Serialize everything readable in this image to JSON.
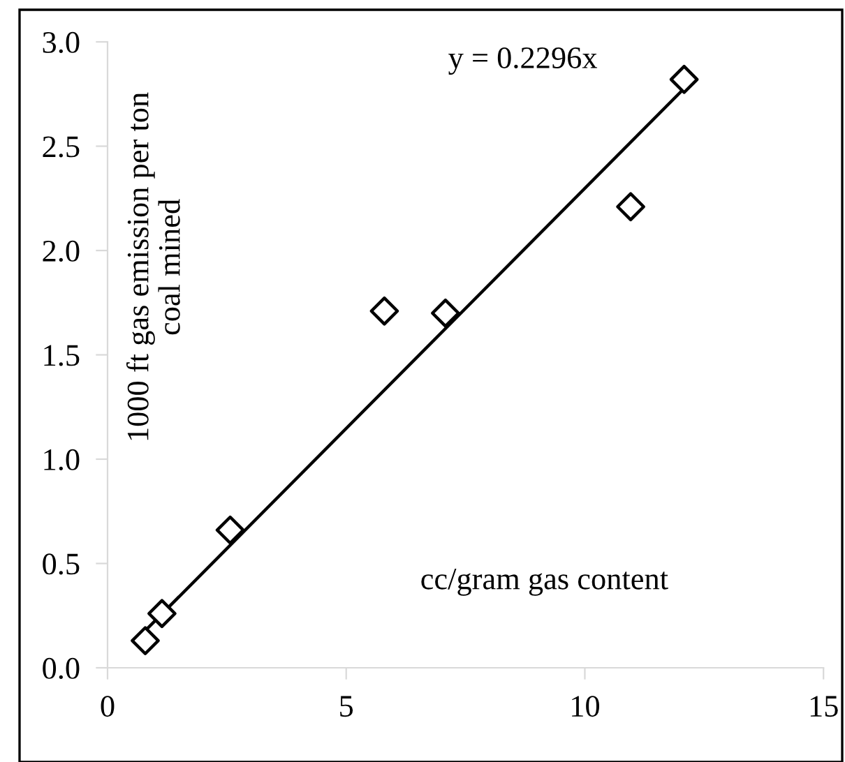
{
  "chart_data": {
    "type": "scatter",
    "xlabel": "cc/gram gas content",
    "ylabel": "1000 ft gas emission per ton\ncoal mined",
    "annotations": [
      "y = 0.2296x"
    ],
    "series": [
      {
        "color": "#000000",
        "marker": "diamond",
        "x": [
          0.79,
          1.14,
          2.57,
          5.8,
          7.08,
          10.96,
          12.08
        ],
        "values": [
          0.13,
          0.26,
          0.66,
          1.71,
          1.7,
          2.21,
          2.82
        ]
      },
      {
        "type": "line",
        "color": "#000000",
        "marker": "none",
        "line_style": "solid",
        "x": [
          0.8,
          12.05
        ],
        "values": [
          0.18,
          2.77
        ]
      }
    ],
    "xlim": [
      0,
      15
    ],
    "xticks": [
      0,
      5,
      10,
      15
    ],
    "ylim": [
      0,
      3
    ],
    "yticks": [
      {
        "value": 0,
        "label": "0.0"
      },
      {
        "value": 0.5,
        "label": "0.5"
      },
      {
        "value": 1,
        "label": "1.0"
      },
      {
        "value": 1.5,
        "label": "1.5"
      },
      {
        "value": 2,
        "label": "2.0"
      },
      {
        "value": 2.5,
        "label": "2.5"
      },
      {
        "value": 3,
        "label": "3.0"
      }
    ],
    "grid": false,
    "legend": false
  }
}
